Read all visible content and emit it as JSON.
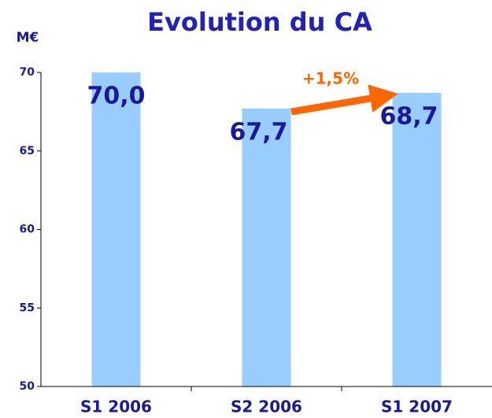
{
  "chart_data": {
    "type": "bar",
    "title": "Evolution du CA",
    "y_axis_label": "M€",
    "categories": [
      "S1 2006",
      "S2 2006",
      "S1 2007"
    ],
    "values": [
      70.0,
      67.7,
      68.7
    ],
    "value_labels": [
      "70,0",
      "67,7",
      "68,7"
    ],
    "color": "#99ccff",
    "ylim": [
      50,
      70
    ],
    "yticks": [
      50,
      55,
      60,
      65,
      70
    ],
    "grid": false,
    "annotation": "+1,5%"
  }
}
